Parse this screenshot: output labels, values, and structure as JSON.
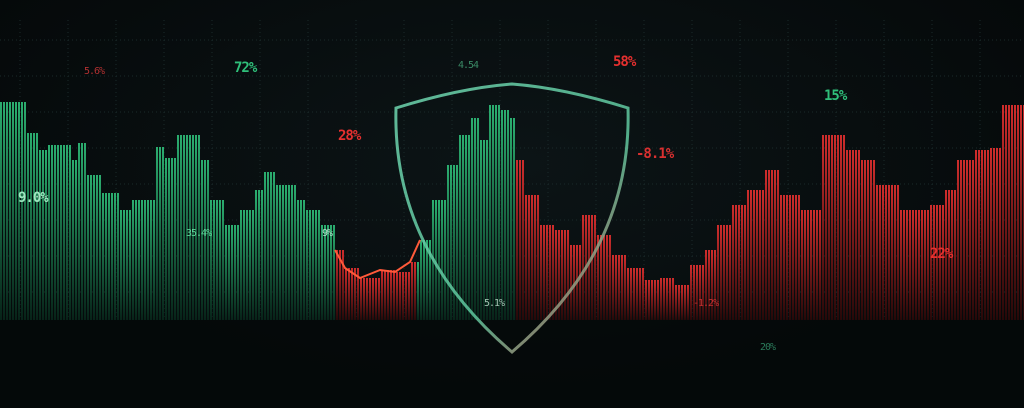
{
  "colors": {
    "gain": "#2fbf7a",
    "loss": "#e5302f",
    "shield": "#6fd6b0",
    "background": "#060b0c"
  },
  "icons": {
    "center": "shield-icon"
  },
  "labels": {
    "top_left_small": "5.6%",
    "top_green": "72%",
    "top_center_small": "4.54",
    "top_red": "58%",
    "mid_red": "28%",
    "right_mid_red": "-8.1%",
    "right_green": "15%",
    "left_green": "9.0%",
    "left_low_green": "35.4%",
    "left_low_small": "9%",
    "center_low": "5.1%",
    "right_low_red": "-1.2%",
    "right_red": "22%",
    "bottom_green": "20%"
  }
}
